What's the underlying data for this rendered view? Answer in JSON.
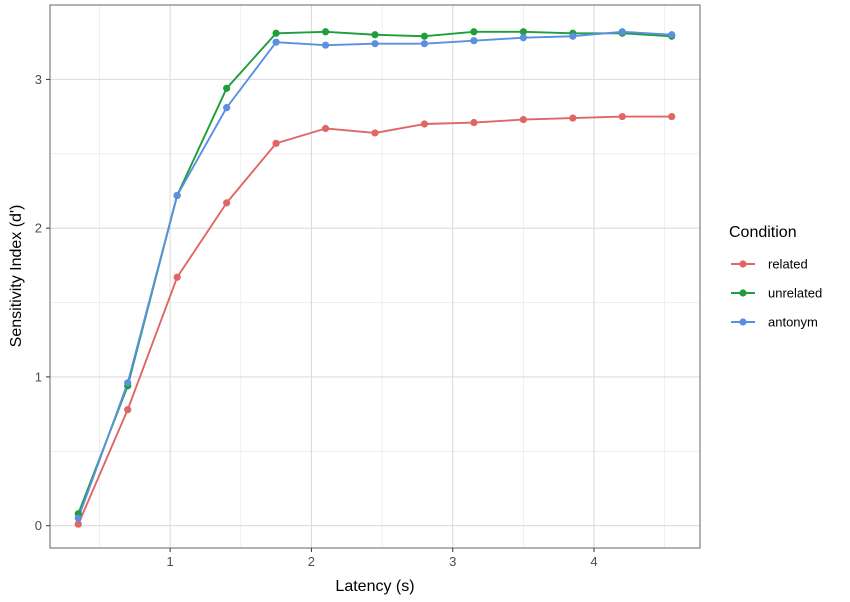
{
  "chart_data": {
    "type": "line",
    "xlabel": "Latency (s)",
    "ylabel": "Sensitivity Index (d')",
    "xlim": [
      0.15,
      4.75
    ],
    "ylim": [
      -0.15,
      3.5
    ],
    "x_ticks": [
      1,
      2,
      3,
      4
    ],
    "y_ticks": [
      0,
      1,
      2,
      3
    ],
    "x_tick_labels": [
      "1",
      "2",
      "3",
      "4"
    ],
    "y_tick_labels": [
      "0",
      "1",
      "2",
      "3"
    ],
    "x_minor_gridlines": [
      0.5,
      1.5,
      2.5,
      3.5,
      4.5
    ],
    "y_minor_gridlines": [
      0.5,
      1.5,
      2.5
    ],
    "grid": true,
    "legend": {
      "title": "Condition",
      "position": "right"
    },
    "x": [
      0.35,
      0.7,
      1.05,
      1.4,
      1.75,
      2.1,
      2.45,
      2.8,
      3.15,
      3.5,
      3.85,
      4.2,
      4.55
    ],
    "series": [
      {
        "name": "related",
        "color": "#E06666",
        "values": [
          0.01,
          0.78,
          1.67,
          2.17,
          2.57,
          2.67,
          2.64,
          2.7,
          2.71,
          2.73,
          2.74,
          2.75,
          2.75
        ]
      },
      {
        "name": "unrelated",
        "color": "#1E9E3C",
        "values": [
          0.08,
          0.94,
          2.22,
          2.94,
          3.31,
          3.32,
          3.3,
          3.29,
          3.32,
          3.32,
          3.31,
          3.31,
          3.29
        ]
      },
      {
        "name": "antonym",
        "color": "#5B8FE0",
        "values": [
          0.05,
          0.96,
          2.22,
          2.81,
          3.25,
          3.23,
          3.24,
          3.24,
          3.26,
          3.28,
          3.29,
          3.32,
          3.3
        ]
      }
    ]
  }
}
